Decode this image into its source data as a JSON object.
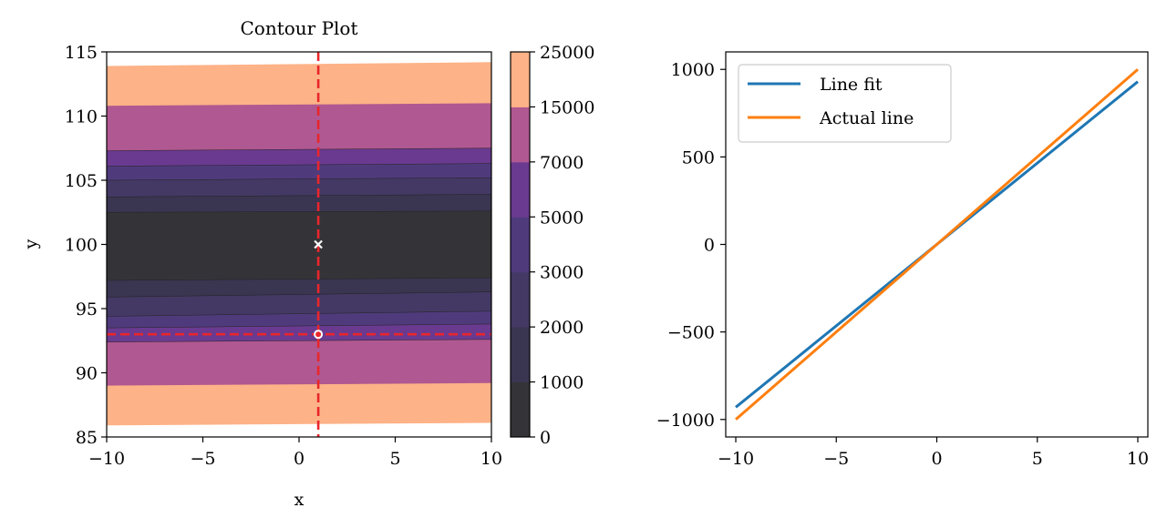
{
  "chart_data": [
    {
      "type": "contour",
      "title": "Contour Plot",
      "xlabel": "x",
      "ylabel": "y",
      "xlim": [
        -10,
        10
      ],
      "ylim": [
        85,
        115
      ],
      "xticks": [
        -10,
        -5,
        0,
        5,
        10
      ],
      "yticks": [
        85,
        90,
        95,
        100,
        105,
        110,
        115
      ],
      "x_tick_labels": [
        "−10",
        "−5",
        "0",
        "5",
        "10"
      ],
      "y_tick_labels": [
        "85",
        "90",
        "95",
        "100",
        "105",
        "110",
        "115"
      ],
      "colorbar": {
        "levels": [
          0,
          1000,
          2000,
          3000,
          5000,
          7000,
          15000,
          25000
        ],
        "labels": [
          "0",
          "1000",
          "2000",
          "3000",
          "5000",
          "7000",
          "15000",
          "25000"
        ],
        "colors": [
          "#343438",
          "#3a3550",
          "#443964",
          "#4f3b7c",
          "#6a3a90",
          "#b05891",
          "#fdb287"
        ]
      },
      "bands": [
        {
          "level": 6,
          "y_bottom": [
            85.9,
            86.1
          ],
          "y_top": [
            113.9,
            114.2
          ]
        },
        {
          "level": 5,
          "y_bottom": [
            89.0,
            89.2
          ],
          "y_top": [
            110.8,
            111.0
          ]
        },
        {
          "level": 4,
          "y_bottom": [
            92.4,
            92.6
          ],
          "y_top": [
            107.3,
            107.5
          ]
        },
        {
          "level": 3,
          "y_bottom": [
            93.5,
            93.8
          ],
          "y_top": [
            106.1,
            106.3
          ]
        },
        {
          "level": 2,
          "y_bottom": [
            94.4,
            94.8
          ],
          "y_top": [
            105.0,
            105.2
          ]
        },
        {
          "level": 1,
          "y_bottom": [
            95.9,
            96.3
          ],
          "y_top": [
            103.7,
            103.9
          ]
        },
        {
          "level": 0,
          "y_bottom": [
            97.2,
            97.4
          ],
          "y_top": [
            102.5,
            102.6
          ]
        }
      ],
      "vline_x": 1,
      "hline_y": 93,
      "markers": [
        {
          "type": "x",
          "x": 1,
          "y": 100
        },
        {
          "type": "o",
          "x": 1,
          "y": 93
        }
      ]
    },
    {
      "type": "line",
      "xlim": [
        -10.5,
        10.5
      ],
      "ylim": [
        -1100,
        1100
      ],
      "xticks": [
        -10,
        -5,
        0,
        5,
        10
      ],
      "yticks": [
        -1000,
        -500,
        0,
        500,
        1000
      ],
      "x_tick_labels": [
        "−10",
        "−5",
        "0",
        "5",
        "10"
      ],
      "y_tick_labels": [
        "−1000",
        "−500",
        "0",
        "500",
        "1000"
      ],
      "legend_position": "upper-left",
      "series": [
        {
          "name": "Line fit",
          "color": "#1f77b4",
          "x": [
            -10,
            10
          ],
          "y": [
            -930,
            930
          ]
        },
        {
          "name": "Actual line",
          "color": "#ff7f0e",
          "x": [
            -10,
            10
          ],
          "y": [
            -1000,
            1000
          ]
        }
      ]
    }
  ]
}
